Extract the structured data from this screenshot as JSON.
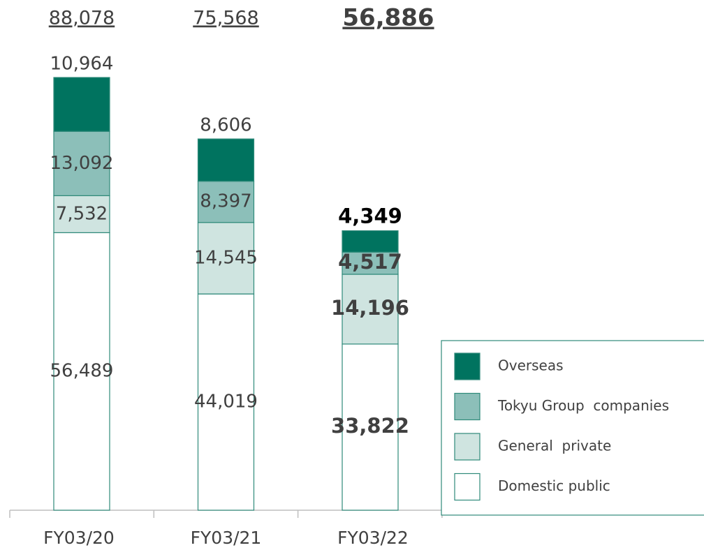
{
  "chart_data": {
    "type": "stacked_bar",
    "categories": [
      "FY03/20",
      "FY03/21",
      "FY03/22"
    ],
    "series": [
      {
        "name": "Domestic public",
        "color": "#ffffff",
        "values": [
          56489,
          44019,
          33822
        ],
        "value_labels": [
          "56,489",
          "44,019",
          "33,822"
        ]
      },
      {
        "name": "General  private",
        "color": "#cfe4e0",
        "values": [
          7532,
          14545,
          14196
        ],
        "value_labels": [
          "7,532",
          "14,545",
          "14,196"
        ]
      },
      {
        "name": "Tokyu Group  companies",
        "color": "#8cbfb9",
        "values": [
          13092,
          8397,
          4517
        ],
        "value_labels": [
          "13,092",
          "8,397",
          "4,517"
        ]
      },
      {
        "name": "Overseas",
        "color": "#00735f",
        "values": [
          10964,
          8606,
          4349
        ],
        "value_labels": [
          "10,964",
          "8,606",
          "4,349"
        ]
      }
    ],
    "totals": [
      88078,
      75568,
      56886
    ],
    "totals_labels": [
      "88,078",
      "75,568",
      "56,886"
    ]
  }
}
